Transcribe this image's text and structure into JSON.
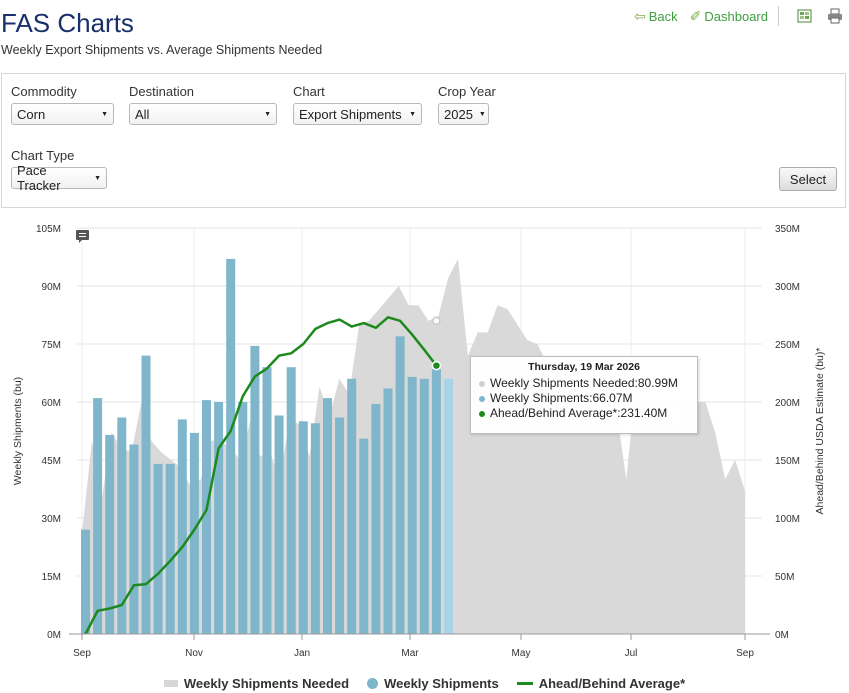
{
  "header": {
    "title": "FAS Charts",
    "subtitle": "Weekly Export Shipments vs. Average Shipments Needed",
    "back_label": "Back",
    "dashboard_label": "Dashboard"
  },
  "filters": {
    "commodity": {
      "label": "Commodity",
      "value": "Corn"
    },
    "destination": {
      "label": "Destination",
      "value": "All"
    },
    "chart": {
      "label": "Chart",
      "value": "Export Shipments"
    },
    "crop_year": {
      "label": "Crop Year",
      "value": "2025"
    },
    "chart_type": {
      "label": "Chart Type",
      "value": "Pace Tracker"
    },
    "select_button": "Select"
  },
  "tooltip": {
    "date": "Thursday, 19 Mar 2026",
    "needed": "Weekly Shipments Needed:80.99M",
    "shipments": "Weekly Shipments:66.07M",
    "ahead": "Ahead/Behind Average*:231.40M"
  },
  "legend": {
    "needed": "Weekly Shipments Needed",
    "shipments": "Weekly Shipments",
    "ahead": "Ahead/Behind Average*"
  },
  "colors": {
    "needed": "#d9d9d9",
    "shipments": "#7fb6cc",
    "shipments_highlight": "#a9d3e6",
    "ahead": "#1e8a1e"
  },
  "chart_data": {
    "type": "bar",
    "title": "",
    "ylabel_left": "Weekly Shipments (bu)",
    "ylabel_right": "Ahead/Behind USDA Estimate (bu)*",
    "left_ticks": [
      "0M",
      "15M",
      "30M",
      "45M",
      "60M",
      "75M",
      "90M",
      "105M"
    ],
    "right_ticks": [
      "0M",
      "50M",
      "100M",
      "150M",
      "200M",
      "250M",
      "300M",
      "350M"
    ],
    "x_ticks": [
      "Sep",
      "Nov",
      "Jan",
      "Mar",
      "May",
      "Jul",
      "Sep"
    ],
    "ylim_left": [
      0,
      105
    ],
    "ylim_right": [
      0,
      350
    ],
    "grid": true,
    "legend_position": "bottom-center",
    "series": [
      {
        "name": "Weekly Shipments Needed",
        "kind": "area",
        "values": [
          26,
          50,
          35,
          52,
          48,
          47,
          60,
          50,
          47,
          45,
          43,
          38,
          40,
          50,
          50,
          48,
          45,
          55,
          46,
          47,
          40,
          56,
          54,
          46,
          64,
          56,
          66,
          62,
          80,
          81,
          84,
          87,
          90,
          85,
          85,
          81,
          82,
          92,
          97,
          72,
          78,
          78,
          85,
          84,
          80,
          76,
          75,
          70,
          68,
          65,
          61,
          56,
          55,
          58,
          58,
          40,
          65,
          56,
          53,
          53,
          52,
          57,
          60,
          60,
          52,
          40,
          45,
          37
        ]
      },
      {
        "name": "Weekly Shipments",
        "kind": "bar",
        "values": [
          27,
          61,
          51.5,
          56,
          49,
          72,
          44,
          44,
          55.5,
          52,
          60.5,
          60,
          97,
          60,
          74.5,
          69,
          56.5,
          69,
          55,
          54.5,
          61,
          56,
          66,
          50.5,
          59.5,
          63.5,
          77,
          66.5,
          66,
          68.5,
          66
        ]
      },
      {
        "name": "Ahead/Behind Average*",
        "kind": "line",
        "values": [
          0,
          20,
          22,
          25,
          42,
          43,
          52,
          63,
          75,
          90,
          107,
          160,
          175,
          205,
          222,
          229,
          240,
          242,
          250,
          263,
          268,
          271,
          265,
          268,
          264,
          273,
          270,
          258,
          245,
          231.4
        ]
      }
    ]
  }
}
